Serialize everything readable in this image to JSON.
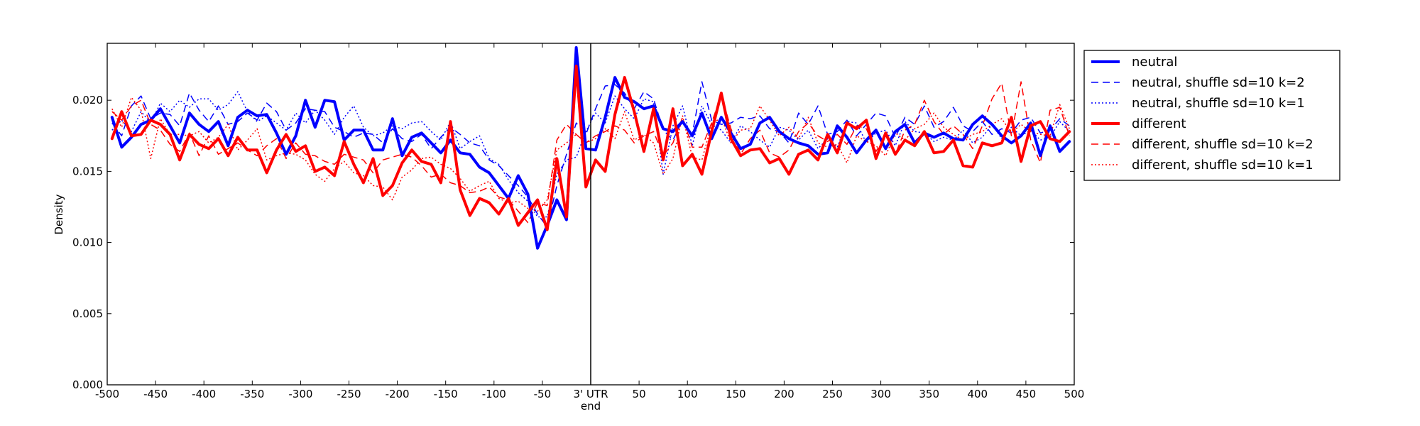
{
  "chart_data": {
    "type": "line",
    "xlabel": "",
    "ylabel": "Density",
    "xlim": [
      -500,
      500
    ],
    "ylim": [
      0,
      0.024
    ],
    "grid": false,
    "legend_position": "outside-right-top",
    "reference_line": {
      "x": 0,
      "color": "#000000"
    },
    "x_tick_labels": [
      {
        "x": -500,
        "label": "-500"
      },
      {
        "x": -450,
        "label": "-450"
      },
      {
        "x": -400,
        "label": "-400"
      },
      {
        "x": -350,
        "label": "-350"
      },
      {
        "x": -300,
        "label": "-300"
      },
      {
        "x": -250,
        "label": "-250"
      },
      {
        "x": -200,
        "label": "-200"
      },
      {
        "x": -150,
        "label": "-150"
      },
      {
        "x": -100,
        "label": "-100"
      },
      {
        "x": -50,
        "label": "-50"
      },
      {
        "x": 0,
        "label": "3' UTR\nend"
      },
      {
        "x": 50,
        "label": "50"
      },
      {
        "x": 100,
        "label": "100"
      },
      {
        "x": 150,
        "label": "150"
      },
      {
        "x": 200,
        "label": "200"
      },
      {
        "x": 250,
        "label": "250"
      },
      {
        "x": 300,
        "label": "300"
      },
      {
        "x": 350,
        "label": "350"
      },
      {
        "x": 400,
        "label": "400"
      },
      {
        "x": 450,
        "label": "450"
      },
      {
        "x": 500,
        "label": "500"
      }
    ],
    "y_tick_labels": [
      {
        "y": 0.0,
        "label": "0.000"
      },
      {
        "y": 0.005,
        "label": "0.005"
      },
      {
        "y": 0.01,
        "label": "0.010"
      },
      {
        "y": 0.015,
        "label": "0.015"
      },
      {
        "y": 0.02,
        "label": "0.020"
      }
    ],
    "x": [
      -495,
      -485,
      -475,
      -465,
      -455,
      -445,
      -435,
      -425,
      -415,
      -405,
      -395,
      -385,
      -375,
      -365,
      -355,
      -345,
      -335,
      -325,
      -315,
      -305,
      -295,
      -285,
      -275,
      -265,
      -255,
      -245,
      -235,
      -225,
      -215,
      -205,
      -195,
      -185,
      -175,
      -165,
      -155,
      -145,
      -135,
      -125,
      -115,
      -105,
      -95,
      -85,
      -75,
      -65,
      -55,
      -45,
      -35,
      -25,
      -15,
      -5,
      5,
      15,
      25,
      35,
      45,
      55,
      65,
      75,
      85,
      95,
      105,
      115,
      125,
      135,
      145,
      155,
      165,
      175,
      185,
      195,
      205,
      215,
      225,
      235,
      245,
      255,
      265,
      275,
      285,
      295,
      305,
      315,
      325,
      335,
      345,
      355,
      365,
      375,
      385,
      395,
      405,
      415,
      425,
      435,
      445,
      455,
      465,
      475,
      485,
      495
    ],
    "series": [
      {
        "name": "neutral",
        "color": "#0000ff",
        "width": 4,
        "dash": "solid",
        "values": [
          0.0188,
          0.0167,
          0.0174,
          0.0183,
          0.0186,
          0.0194,
          0.0182,
          0.017,
          0.0191,
          0.0183,
          0.0178,
          0.0185,
          0.0168,
          0.0188,
          0.0193,
          0.0189,
          0.019,
          0.0177,
          0.0162,
          0.0175,
          0.02,
          0.0181,
          0.02,
          0.0199,
          0.0172,
          0.0179,
          0.0179,
          0.0165,
          0.0165,
          0.0187,
          0.0161,
          0.0174,
          0.0177,
          0.017,
          0.0163,
          0.0172,
          0.0163,
          0.0162,
          0.0153,
          0.0149,
          0.014,
          0.0131,
          0.0147,
          0.0134,
          0.0096,
          0.0112,
          0.013,
          0.0116,
          0.0237,
          0.0166,
          0.0165,
          0.0188,
          0.0216,
          0.0202,
          0.0199,
          0.0194,
          0.0196,
          0.018,
          0.0178,
          0.0185,
          0.0175,
          0.0191,
          0.0173,
          0.0188,
          0.0177,
          0.0166,
          0.0169,
          0.0184,
          0.0188,
          0.0178,
          0.0173,
          0.017,
          0.0168,
          0.0162,
          0.0163,
          0.0182,
          0.0174,
          0.0163,
          0.0172,
          0.0179,
          0.0166,
          0.0178,
          0.0183,
          0.017,
          0.0177,
          0.0174,
          0.0177,
          0.0173,
          0.0172,
          0.0183,
          0.0189,
          0.0183,
          0.0175,
          0.017,
          0.0175,
          0.0184,
          0.0161,
          0.0182,
          0.0164,
          0.0171
        ]
      },
      {
        "name": "neutral, shuffle sd=10 k=2",
        "color": "#0000ff",
        "width": 1.5,
        "dash": "dashed",
        "values": [
          0.0184,
          0.0175,
          0.0196,
          0.0203,
          0.0187,
          0.0191,
          0.019,
          0.0182,
          0.0205,
          0.0193,
          0.0185,
          0.0196,
          0.0183,
          0.0185,
          0.0191,
          0.0186,
          0.0198,
          0.0192,
          0.0179,
          0.0184,
          0.0194,
          0.0193,
          0.0192,
          0.0181,
          0.0178,
          0.0174,
          0.0177,
          0.0176,
          0.017,
          0.018,
          0.0173,
          0.0171,
          0.0176,
          0.0166,
          0.0174,
          0.0181,
          0.0176,
          0.017,
          0.0168,
          0.0158,
          0.0154,
          0.0147,
          0.014,
          0.0132,
          0.012,
          0.0111,
          0.014,
          0.0162,
          0.0184,
          0.0176,
          0.0194,
          0.021,
          0.0211,
          0.0205,
          0.0194,
          0.0206,
          0.0201,
          0.0179,
          0.0172,
          0.0186,
          0.0176,
          0.0213,
          0.0186,
          0.0183,
          0.0184,
          0.0188,
          0.0187,
          0.0189,
          0.018,
          0.0178,
          0.017,
          0.0191,
          0.0183,
          0.0196,
          0.0176,
          0.0178,
          0.0186,
          0.0175,
          0.0183,
          0.0191,
          0.0189,
          0.0174,
          0.0188,
          0.0183,
          0.0196,
          0.0181,
          0.0185,
          0.0195,
          0.0182,
          0.0178,
          0.0185,
          0.0176,
          0.018,
          0.0177,
          0.0186,
          0.0188,
          0.0177,
          0.0179,
          0.0187,
          0.0182
        ]
      },
      {
        "name": "neutral, shuffle sd=10 k=1",
        "color": "#0000ff",
        "width": 1.5,
        "dash": "dotted",
        "values": [
          0.0179,
          0.0186,
          0.0178,
          0.0192,
          0.0184,
          0.0198,
          0.0192,
          0.02,
          0.0195,
          0.0201,
          0.0201,
          0.0193,
          0.0197,
          0.0206,
          0.0192,
          0.0185,
          0.0189,
          0.0184,
          0.0179,
          0.0191,
          0.0184,
          0.0193,
          0.0186,
          0.0176,
          0.0188,
          0.0196,
          0.0181,
          0.0175,
          0.0177,
          0.0182,
          0.018,
          0.0184,
          0.0185,
          0.0178,
          0.0172,
          0.0185,
          0.0166,
          0.0171,
          0.0175,
          0.0159,
          0.0155,
          0.0144,
          0.0135,
          0.0129,
          0.0118,
          0.0118,
          0.0148,
          0.0158,
          0.016,
          0.0178,
          0.0191,
          0.0184,
          0.0203,
          0.0194,
          0.0187,
          0.0201,
          0.0199,
          0.0148,
          0.0182,
          0.0196,
          0.0168,
          0.0196,
          0.0183,
          0.0179,
          0.017,
          0.0182,
          0.0178,
          0.0172,
          0.0167,
          0.0181,
          0.0179,
          0.0172,
          0.0179,
          0.0166,
          0.0173,
          0.0167,
          0.0185,
          0.0184,
          0.017,
          0.0177,
          0.0179,
          0.0168,
          0.0185,
          0.0178,
          0.0177,
          0.0171,
          0.0174,
          0.0172,
          0.0179,
          0.017,
          0.0174,
          0.0183,
          0.0173,
          0.0181,
          0.0175,
          0.0179,
          0.0172,
          0.0174,
          0.0185,
          0.0178
        ]
      },
      {
        "name": "different",
        "color": "#ff0000",
        "width": 4,
        "dash": "solid",
        "values": [
          0.0173,
          0.0192,
          0.0175,
          0.0176,
          0.0186,
          0.0183,
          0.0176,
          0.0158,
          0.0176,
          0.0169,
          0.0166,
          0.0173,
          0.0161,
          0.0174,
          0.0165,
          0.0165,
          0.0149,
          0.0165,
          0.0176,
          0.0164,
          0.0168,
          0.015,
          0.0153,
          0.0147,
          0.0171,
          0.0155,
          0.0142,
          0.0159,
          0.0133,
          0.014,
          0.0156,
          0.0165,
          0.0157,
          0.0155,
          0.0142,
          0.0185,
          0.0137,
          0.0119,
          0.0131,
          0.0128,
          0.012,
          0.0131,
          0.0112,
          0.0121,
          0.013,
          0.0109,
          0.0159,
          0.0118,
          0.0224,
          0.0139,
          0.0158,
          0.015,
          0.019,
          0.0216,
          0.0192,
          0.0164,
          0.0194,
          0.0158,
          0.0194,
          0.0154,
          0.0162,
          0.0148,
          0.0178,
          0.0205,
          0.0173,
          0.0161,
          0.0165,
          0.0166,
          0.0156,
          0.0159,
          0.0148,
          0.0162,
          0.0165,
          0.0158,
          0.0176,
          0.0163,
          0.0184,
          0.018,
          0.0186,
          0.0159,
          0.0177,
          0.0162,
          0.0172,
          0.0168,
          0.0178,
          0.0163,
          0.0164,
          0.0172,
          0.0154,
          0.0153,
          0.017,
          0.0168,
          0.017,
          0.0188,
          0.0157,
          0.0182,
          0.0185,
          0.0173,
          0.0171,
          0.0178
        ]
      },
      {
        "name": "different, shuffle sd=10 k=2",
        "color": "#ff0000",
        "width": 1.5,
        "dash": "dashed",
        "values": [
          0.0192,
          0.0186,
          0.0196,
          0.02,
          0.0183,
          0.0179,
          0.0169,
          0.0164,
          0.0177,
          0.0161,
          0.0175,
          0.0162,
          0.0166,
          0.017,
          0.0165,
          0.0161,
          0.0168,
          0.0173,
          0.0159,
          0.017,
          0.0162,
          0.0161,
          0.0157,
          0.0155,
          0.0162,
          0.016,
          0.0158,
          0.0149,
          0.0158,
          0.016,
          0.0162,
          0.016,
          0.0154,
          0.0146,
          0.0148,
          0.0142,
          0.014,
          0.0135,
          0.0136,
          0.0139,
          0.0132,
          0.013,
          0.0122,
          0.0114,
          0.0128,
          0.0126,
          0.0172,
          0.0183,
          0.0176,
          0.017,
          0.0175,
          0.0178,
          0.0182,
          0.0179,
          0.017,
          0.0175,
          0.0178,
          0.0161,
          0.017,
          0.0188,
          0.0167,
          0.0167,
          0.0184,
          0.0204,
          0.018,
          0.0162,
          0.0173,
          0.0179,
          0.0163,
          0.016,
          0.0165,
          0.0178,
          0.0184,
          0.0175,
          0.0171,
          0.0176,
          0.0169,
          0.0182,
          0.018,
          0.0164,
          0.0175,
          0.0162,
          0.0179,
          0.0183,
          0.02,
          0.0185,
          0.0176,
          0.0182,
          0.0176,
          0.0166,
          0.0182,
          0.0201,
          0.0212,
          0.0175,
          0.0213,
          0.0172,
          0.0156,
          0.0193,
          0.0195,
          0.0175
        ]
      },
      {
        "name": "different, shuffle sd=10 k=1",
        "color": "#ff0000",
        "width": 1.5,
        "dash": "dotted",
        "values": [
          0.0194,
          0.0181,
          0.0202,
          0.0193,
          0.0159,
          0.0187,
          0.0176,
          0.0176,
          0.0175,
          0.0178,
          0.017,
          0.0174,
          0.0183,
          0.0165,
          0.0172,
          0.018,
          0.0158,
          0.0161,
          0.0163,
          0.0162,
          0.0158,
          0.0148,
          0.0143,
          0.0152,
          0.0157,
          0.0149,
          0.0147,
          0.014,
          0.0139,
          0.013,
          0.0146,
          0.0151,
          0.0159,
          0.016,
          0.0155,
          0.0152,
          0.0145,
          0.0136,
          0.014,
          0.0143,
          0.0131,
          0.0128,
          0.0129,
          0.0124,
          0.0122,
          0.013,
          0.0165,
          0.017,
          0.0176,
          0.017,
          0.0173,
          0.018,
          0.0173,
          0.0192,
          0.0172,
          0.0176,
          0.017,
          0.0148,
          0.0159,
          0.0189,
          0.016,
          0.0158,
          0.0183,
          0.0188,
          0.017,
          0.0179,
          0.018,
          0.0196,
          0.0186,
          0.0175,
          0.0181,
          0.0173,
          0.0188,
          0.017,
          0.0167,
          0.0169,
          0.0156,
          0.0175,
          0.0171,
          0.0168,
          0.0161,
          0.0177,
          0.0172,
          0.018,
          0.0183,
          0.0191,
          0.0181,
          0.0176,
          0.0172,
          0.0176,
          0.0178,
          0.0183,
          0.0187,
          0.0177,
          0.0183,
          0.0178,
          0.0176,
          0.0175,
          0.0197,
          0.018
        ]
      }
    ]
  }
}
